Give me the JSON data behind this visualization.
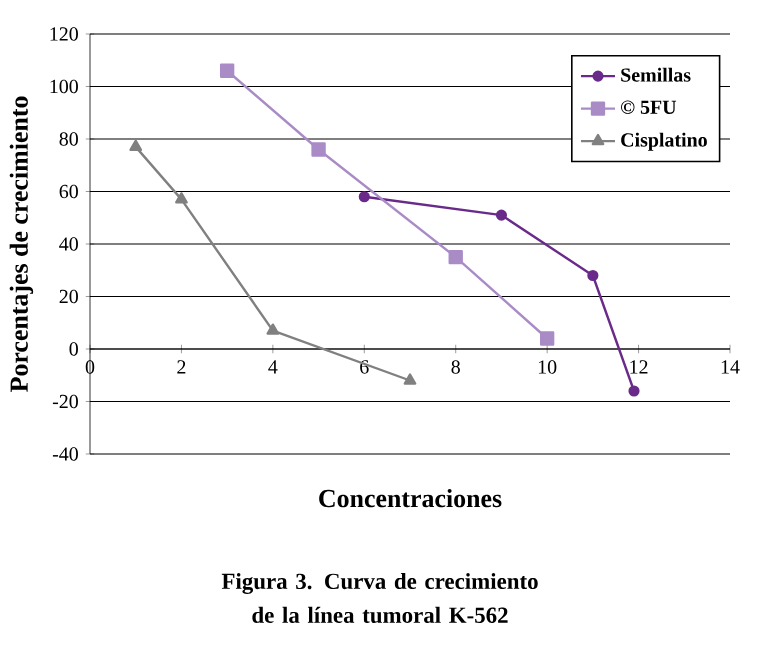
{
  "chart_data": {
    "type": "line",
    "xlabel": "Concentraciones",
    "ylabel": "Porcentajes de crecimiento",
    "xlim": [
      0,
      14
    ],
    "xticks": [
      0,
      2,
      4,
      6,
      8,
      10,
      12,
      14
    ],
    "ylim": [
      -40,
      120
    ],
    "yticks": [
      -40,
      -20,
      0,
      20,
      40,
      60,
      80,
      100,
      120
    ],
    "grid": "y",
    "legend": "top right",
    "line_style": "solid",
    "series": [
      {
        "name": "Semillas",
        "color": "#6a2a8a",
        "marker": "circle",
        "x": [
          6,
          9,
          11,
          11.9
        ],
        "values": [
          58,
          51,
          28,
          -16
        ]
      },
      {
        "name": "© 5FU",
        "color": "#a98bc6",
        "marker": "square",
        "x": [
          3,
          5,
          8,
          10
        ],
        "values": [
          106,
          76,
          35,
          4
        ]
      },
      {
        "name": "Cisplatino",
        "color": "#808080",
        "marker": "triangle",
        "x": [
          1,
          2,
          4,
          7
        ],
        "values": [
          77,
          57,
          7,
          -12
        ]
      }
    ],
    "annotations": [
      "Figura 3. Curva de crecimiento de la línea tumoral K-562"
    ]
  }
}
